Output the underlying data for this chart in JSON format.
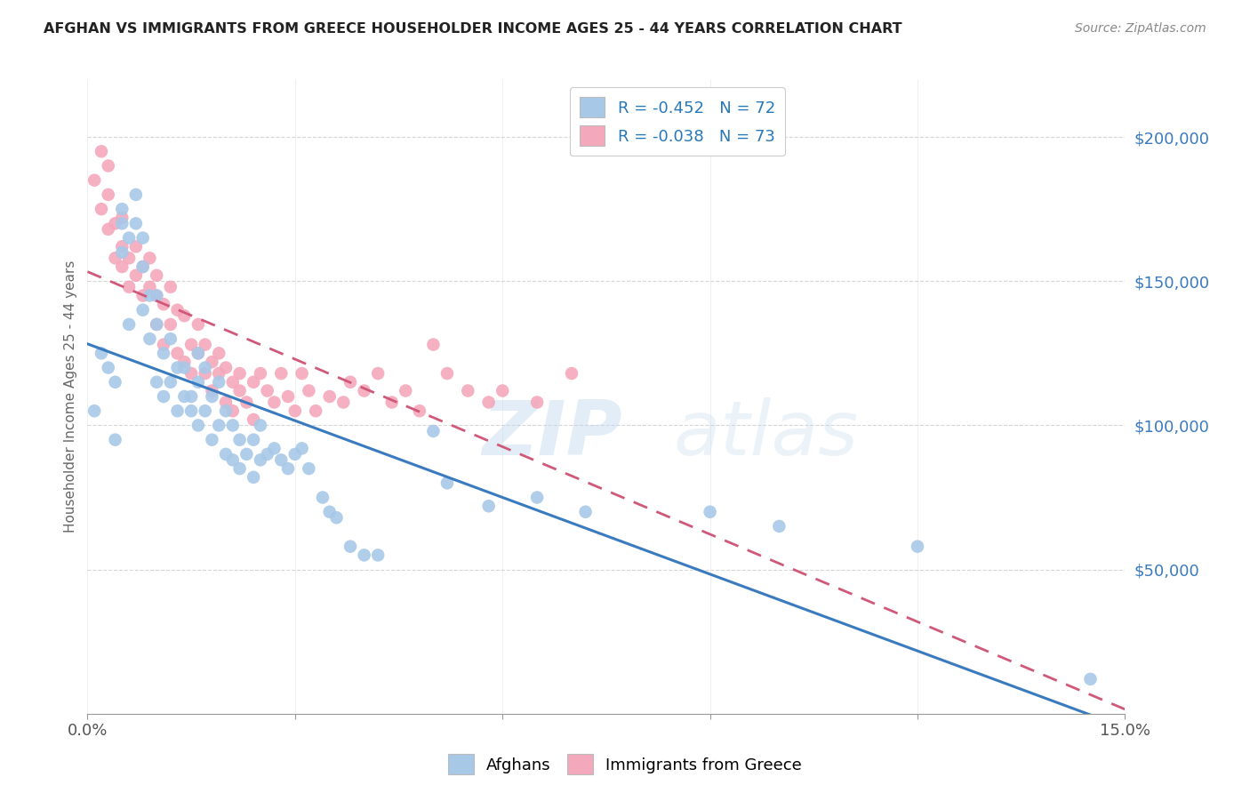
{
  "title": "AFGHAN VS IMMIGRANTS FROM GREECE HOUSEHOLDER INCOME AGES 25 - 44 YEARS CORRELATION CHART",
  "source": "Source: ZipAtlas.com",
  "ylabel": "Householder Income Ages 25 - 44 years",
  "xlim": [
    0.0,
    0.15
  ],
  "ylim": [
    0,
    220000
  ],
  "xticks": [
    0.0,
    0.03,
    0.06,
    0.09,
    0.12,
    0.15
  ],
  "xticklabels": [
    "0.0%",
    "",
    "",
    "",
    "",
    "15.0%"
  ],
  "ytick_positions": [
    50000,
    100000,
    150000,
    200000
  ],
  "ytick_labels": [
    "$50,000",
    "$100,000",
    "$150,000",
    "$200,000"
  ],
  "blue_color": "#a8c8e8",
  "pink_color": "#f4a8bc",
  "blue_line_color": "#3a7abf",
  "pink_line_color": "#d05878",
  "blue_R": -0.452,
  "blue_N": 72,
  "pink_R": -0.038,
  "pink_N": 73,
  "watermark": "ZIPatlas",
  "afghans_x": [
    0.001,
    0.002,
    0.003,
    0.004,
    0.004,
    0.005,
    0.005,
    0.005,
    0.006,
    0.006,
    0.007,
    0.007,
    0.008,
    0.008,
    0.008,
    0.009,
    0.009,
    0.01,
    0.01,
    0.01,
    0.011,
    0.011,
    0.012,
    0.012,
    0.013,
    0.013,
    0.014,
    0.014,
    0.015,
    0.015,
    0.016,
    0.016,
    0.016,
    0.017,
    0.017,
    0.018,
    0.018,
    0.019,
    0.019,
    0.02,
    0.02,
    0.021,
    0.021,
    0.022,
    0.022,
    0.023,
    0.024,
    0.024,
    0.025,
    0.025,
    0.026,
    0.027,
    0.028,
    0.029,
    0.03,
    0.031,
    0.032,
    0.034,
    0.035,
    0.036,
    0.038,
    0.04,
    0.042,
    0.05,
    0.052,
    0.058,
    0.065,
    0.072,
    0.09,
    0.1,
    0.12,
    0.145
  ],
  "afghans_y": [
    105000,
    125000,
    120000,
    115000,
    95000,
    170000,
    175000,
    160000,
    165000,
    135000,
    180000,
    170000,
    155000,
    165000,
    140000,
    145000,
    130000,
    145000,
    135000,
    115000,
    125000,
    110000,
    130000,
    115000,
    120000,
    105000,
    120000,
    110000,
    110000,
    105000,
    125000,
    115000,
    100000,
    120000,
    105000,
    110000,
    95000,
    115000,
    100000,
    105000,
    90000,
    100000,
    88000,
    95000,
    85000,
    90000,
    95000,
    82000,
    88000,
    100000,
    90000,
    92000,
    88000,
    85000,
    90000,
    92000,
    85000,
    75000,
    70000,
    68000,
    58000,
    55000,
    55000,
    98000,
    80000,
    72000,
    75000,
    70000,
    70000,
    65000,
    58000,
    12000
  ],
  "greece_x": [
    0.001,
    0.002,
    0.002,
    0.003,
    0.003,
    0.003,
    0.004,
    0.004,
    0.005,
    0.005,
    0.005,
    0.006,
    0.006,
    0.007,
    0.007,
    0.008,
    0.008,
    0.009,
    0.009,
    0.01,
    0.01,
    0.01,
    0.011,
    0.011,
    0.012,
    0.012,
    0.013,
    0.013,
    0.014,
    0.014,
    0.015,
    0.015,
    0.016,
    0.016,
    0.017,
    0.017,
    0.018,
    0.018,
    0.019,
    0.019,
    0.02,
    0.02,
    0.021,
    0.021,
    0.022,
    0.022,
    0.023,
    0.024,
    0.024,
    0.025,
    0.026,
    0.027,
    0.028,
    0.029,
    0.03,
    0.031,
    0.032,
    0.033,
    0.035,
    0.037,
    0.038,
    0.04,
    0.042,
    0.044,
    0.046,
    0.048,
    0.05,
    0.052,
    0.055,
    0.058,
    0.06,
    0.065,
    0.07
  ],
  "greece_y": [
    185000,
    195000,
    175000,
    190000,
    168000,
    180000,
    170000,
    158000,
    172000,
    162000,
    155000,
    158000,
    148000,
    162000,
    152000,
    155000,
    145000,
    148000,
    158000,
    145000,
    152000,
    135000,
    142000,
    128000,
    135000,
    148000,
    140000,
    125000,
    138000,
    122000,
    128000,
    118000,
    125000,
    135000,
    128000,
    118000,
    122000,
    112000,
    118000,
    125000,
    120000,
    108000,
    115000,
    105000,
    118000,
    112000,
    108000,
    115000,
    102000,
    118000,
    112000,
    108000,
    118000,
    110000,
    105000,
    118000,
    112000,
    105000,
    110000,
    108000,
    115000,
    112000,
    118000,
    108000,
    112000,
    105000,
    128000,
    118000,
    112000,
    108000,
    112000,
    108000,
    118000
  ]
}
